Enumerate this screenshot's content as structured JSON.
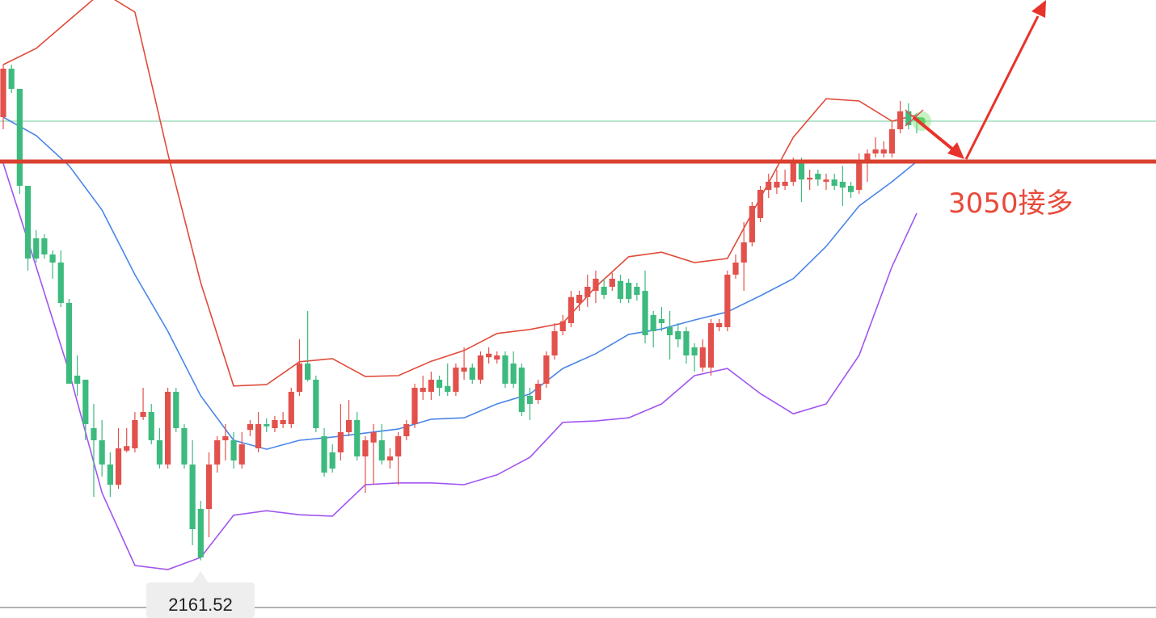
{
  "chart_data": {
    "type": "candlestick",
    "ylim": [
      2033,
      3410
    ],
    "up_color": "#e2514c",
    "down_color": "#3dba7e",
    "open": [
      3149,
      3257,
      3212,
      2996,
      2879,
      2879,
      2843,
      2825,
      2735,
      2573,
      2564,
      2456,
      2429,
      2375,
      2330,
      2406,
      2411,
      2481,
      2492,
      2429,
      2375,
      2537,
      2456,
      2375,
      2276,
      2276,
      2375,
      2429,
      2429,
      2375,
      2452,
      2411,
      2465,
      2456,
      2465,
      2465,
      2537,
      2600,
      2564,
      2438,
      2402,
      2402,
      2447,
      2474,
      2393,
      2424,
      2429,
      2384,
      2393,
      2438,
      2465,
      2537,
      2537,
      2564,
      2550,
      2537,
      2582,
      2591,
      2564,
      2614,
      2609,
      2618,
      2600,
      2591,
      2528,
      2519,
      2555,
      2618,
      2672,
      2690,
      2735,
      2748,
      2762,
      2771,
      2771,
      2784,
      2780,
      2771,
      2762,
      2708,
      2699,
      2681,
      2672,
      2672,
      2636,
      2591,
      2591,
      2681,
      2681,
      2798,
      2825,
      2870,
      2924,
      2987,
      2992,
      2996,
      3005,
      3050,
      3010,
      3023,
      3005,
      3010,
      3005,
      2996,
      2987,
      3050,
      3068,
      3068,
      3068,
      3122,
      3162,
      3149
    ],
    "high": [
      3266,
      3266,
      3212,
      2996,
      2897,
      2888,
      2852,
      2852,
      2744,
      2618,
      2564,
      2510,
      2474,
      2402,
      2456,
      2456,
      2492,
      2546,
      2510,
      2456,
      2546,
      2546,
      2465,
      2429,
      2294,
      2402,
      2438,
      2465,
      2447,
      2447,
      2474,
      2492,
      2478,
      2483,
      2492,
      2546,
      2654,
      2717,
      2573,
      2456,
      2420,
      2510,
      2519,
      2492,
      2438,
      2465,
      2465,
      2411,
      2447,
      2474,
      2555,
      2573,
      2582,
      2573,
      2600,
      2600,
      2636,
      2600,
      2627,
      2636,
      2627,
      2627,
      2627,
      2600,
      2546,
      2564,
      2627,
      2690,
      2708,
      2762,
      2762,
      2798,
      2807,
      2789,
      2802,
      2798,
      2789,
      2780,
      2807,
      2717,
      2726,
      2717,
      2690,
      2681,
      2645,
      2654,
      2699,
      2699,
      2807,
      2843,
      2915,
      2960,
      2996,
      3023,
      3032,
      3032,
      3059,
      3059,
      3032,
      3032,
      3023,
      3023,
      3041,
      3005,
      3068,
      3077,
      3104,
      3095,
      3140,
      3185,
      3180,
      3158
    ],
    "low": [
      3122,
      3203,
      2978,
      2807,
      2825,
      2834,
      2789,
      2726,
      2555,
      2528,
      2429,
      2303,
      2348,
      2303,
      2321,
      2402,
      2402,
      2474,
      2420,
      2366,
      2366,
      2447,
      2366,
      2195,
      2161.52,
      2213,
      2357,
      2384,
      2366,
      2366,
      2438,
      2402,
      2447,
      2447,
      2456,
      2456,
      2528,
      2560,
      2447,
      2348,
      2357,
      2384,
      2438,
      2384,
      2312,
      2330,
      2375,
      2366,
      2330,
      2429,
      2456,
      2519,
      2519,
      2528,
      2528,
      2528,
      2564,
      2555,
      2555,
      2600,
      2600,
      2546,
      2546,
      2483,
      2474,
      2510,
      2546,
      2609,
      2663,
      2681,
      2717,
      2726,
      2735,
      2744,
      2762,
      2735,
      2735,
      2740,
      2645,
      2636,
      2672,
      2609,
      2636,
      2600,
      2582,
      2582,
      2573,
      2672,
      2672,
      2789,
      2762,
      2861,
      2915,
      2969,
      2978,
      2987,
      2996,
      2960,
      2987,
      2996,
      2987,
      2987,
      2951,
      2969,
      2978,
      3005,
      3059,
      3059,
      3059,
      3113,
      3122,
      3113
    ],
    "close": [
      3257,
      3212,
      2996,
      2834,
      2834,
      2843,
      2825,
      2735,
      2555,
      2555,
      2465,
      2429,
      2375,
      2330,
      2411,
      2416,
      2474,
      2492,
      2429,
      2375,
      2537,
      2456,
      2375,
      2231,
      2168,
      2375,
      2429,
      2438,
      2384,
      2420,
      2465,
      2465,
      2460,
      2474,
      2474,
      2537,
      2600,
      2564,
      2456,
      2357,
      2366,
      2447,
      2474,
      2393,
      2429,
      2447,
      2384,
      2393,
      2438,
      2465,
      2546,
      2546,
      2564,
      2546,
      2537,
      2591,
      2591,
      2564,
      2618,
      2622,
      2618,
      2555,
      2555,
      2492,
      2510,
      2555,
      2618,
      2672,
      2694,
      2748,
      2753,
      2771,
      2789,
      2753,
      2789,
      2744,
      2744,
      2753,
      2663,
      2672,
      2690,
      2663,
      2654,
      2618,
      2618,
      2636,
      2690,
      2690,
      2798,
      2825,
      2870,
      2951,
      2987,
      3005,
      3005,
      3005,
      3050,
      3010,
      3014,
      3010,
      3010,
      2996,
      2992,
      2982,
      3050,
      3068,
      3077,
      3077,
      3122,
      3162,
      3131,
      3140
    ],
    "band_x": [
      0,
      4,
      8,
      12,
      16,
      20,
      24,
      28,
      32,
      36,
      40,
      44,
      48,
      52,
      56,
      60,
      64,
      68,
      72,
      76,
      80,
      84,
      88,
      92,
      96,
      100,
      104,
      108,
      111
    ],
    "bands": [
      {
        "color": "#e04b3a",
        "values": [
          3266,
          3302,
          3365,
          3428,
          3383,
          3068,
          2780,
          2550,
          2553,
          2604,
          2611,
          2571,
          2573,
          2605,
          2629,
          2667,
          2676,
          2690,
          2771,
          2838,
          2848,
          2825,
          2834,
          2969,
          3104,
          3190,
          3185,
          3140,
          3154
        ]
      },
      {
        "color": "#4a86e8",
        "values": [
          3149,
          3108,
          3041,
          2942,
          2798,
          2672,
          2528,
          2429,
          2409,
          2429,
          2436,
          2445,
          2454,
          2476,
          2479,
          2510,
          2532,
          2589,
          2622,
          2665,
          2677,
          2697,
          2715,
          2751,
          2789,
          2861,
          2951,
          3005,
          3050
        ]
      },
      {
        "color": "#a155f0",
        "values": [
          3046,
          2816,
          2582,
          2312,
          2150,
          2141,
          2168,
          2262,
          2272,
          2263,
          2260,
          2330,
          2334,
          2334,
          2330,
          2352,
          2391,
          2469,
          2472,
          2479,
          2510,
          2573,
          2589,
          2533,
          2488,
          2510,
          2618,
          2816,
          2935
        ]
      }
    ],
    "support": {
      "value": 3050,
      "label": "3050接多",
      "color": "#d9412f"
    },
    "last_price": 3140,
    "last_price_color": "#8fd6b2",
    "low_label": 2161.52
  }
}
